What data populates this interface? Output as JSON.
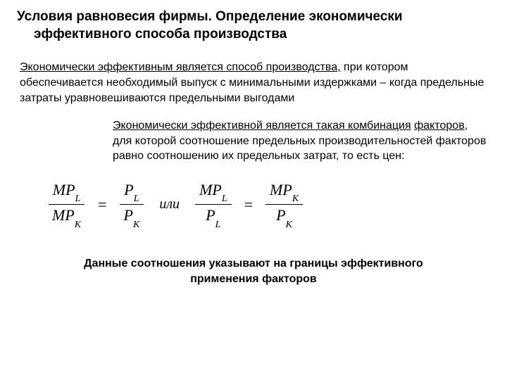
{
  "title": {
    "line1": "Условия равновесия фирмы. Определение экономически",
    "line2": "эффективного способа производства"
  },
  "para1": {
    "underlined": "Экономически эффективным является  способ производства,",
    "rest": " при котором обеспечивается  необходимый выпуск с минимальными издержками – когда предельные затраты уравновешиваются предельными выгодами"
  },
  "para2": {
    "underlined_part1": "Экономически  эффективной является такая комбинация",
    "underlined_part2": "факторов",
    "rest": ", для которой  соотношение предельных производительностей факторов равно соотношению их предельных затрат, то есть цен:"
  },
  "equation": {
    "frac1_num_main": "MP",
    "frac1_num_sub": "L",
    "frac1_den_main": "MP",
    "frac1_den_sub": "K",
    "eq": "=",
    "frac2_num_main": "P",
    "frac2_num_sub": "L",
    "frac2_den_main": "P",
    "frac2_den_sub": "K",
    "ili": "или",
    "frac3_num_main": "MP",
    "frac3_num_sub": "L",
    "frac3_den_main": "P",
    "frac3_den_sub": "L",
    "frac4_num_main": "MP",
    "frac4_num_sub": "K",
    "frac4_den_main": "P",
    "frac4_den_sub": "K"
  },
  "para3": "Данные соотношения указывают на границы эффективного применения факторов",
  "style": {
    "background_color": "#ffffff",
    "text_color": "#000000",
    "title_fontsize": 19,
    "body_fontsize": 16,
    "equation_fontsize": 22,
    "equation_font": "Times New Roman",
    "body_font": "Arial"
  }
}
